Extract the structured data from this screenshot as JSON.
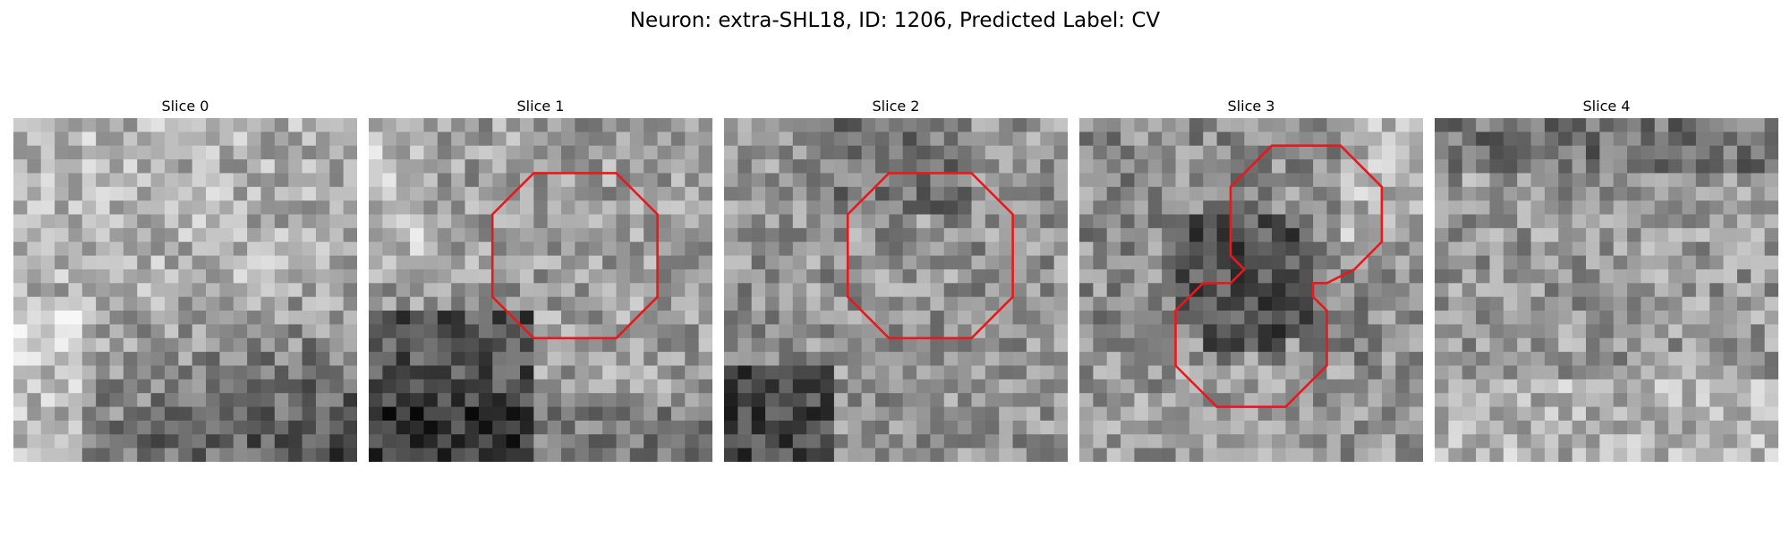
{
  "figure": {
    "title": "Neuron: extra-SHL18, ID: 1206, Predicted Label: CV"
  },
  "panels": [
    {
      "title": "Slice 0",
      "contours": []
    },
    {
      "title": "Slice 1",
      "contours": [
        [
          [
            12,
            4
          ],
          [
            18,
            4
          ],
          [
            21,
            7
          ],
          [
            21,
            13
          ],
          [
            18,
            16
          ],
          [
            12,
            16
          ],
          [
            9,
            13
          ],
          [
            9,
            7
          ]
        ]
      ]
    },
    {
      "title": "Slice 2",
      "contours": [
        [
          [
            12,
            4
          ],
          [
            18,
            4
          ],
          [
            21,
            7
          ],
          [
            21,
            13
          ],
          [
            18,
            16
          ],
          [
            12,
            16
          ],
          [
            9,
            13
          ],
          [
            9,
            7
          ]
        ]
      ]
    },
    {
      "title": "Slice 3",
      "contours": [
        [
          [
            14,
            2
          ],
          [
            19,
            2
          ],
          [
            22,
            5
          ],
          [
            22,
            9
          ],
          [
            20,
            11
          ],
          [
            18,
            12
          ],
          [
            17,
            12
          ],
          [
            17,
            13
          ],
          [
            18,
            14
          ],
          [
            18,
            18
          ],
          [
            15,
            21
          ],
          [
            10,
            21
          ],
          [
            7,
            18
          ],
          [
            7,
            14
          ],
          [
            9,
            12
          ],
          [
            11,
            12
          ],
          [
            12,
            11
          ],
          [
            11,
            10
          ],
          [
            11,
            5
          ]
        ]
      ]
    },
    {
      "title": "Slice 4",
      "contours": []
    }
  ],
  "colors": {
    "contour": "#e8191c"
  }
}
